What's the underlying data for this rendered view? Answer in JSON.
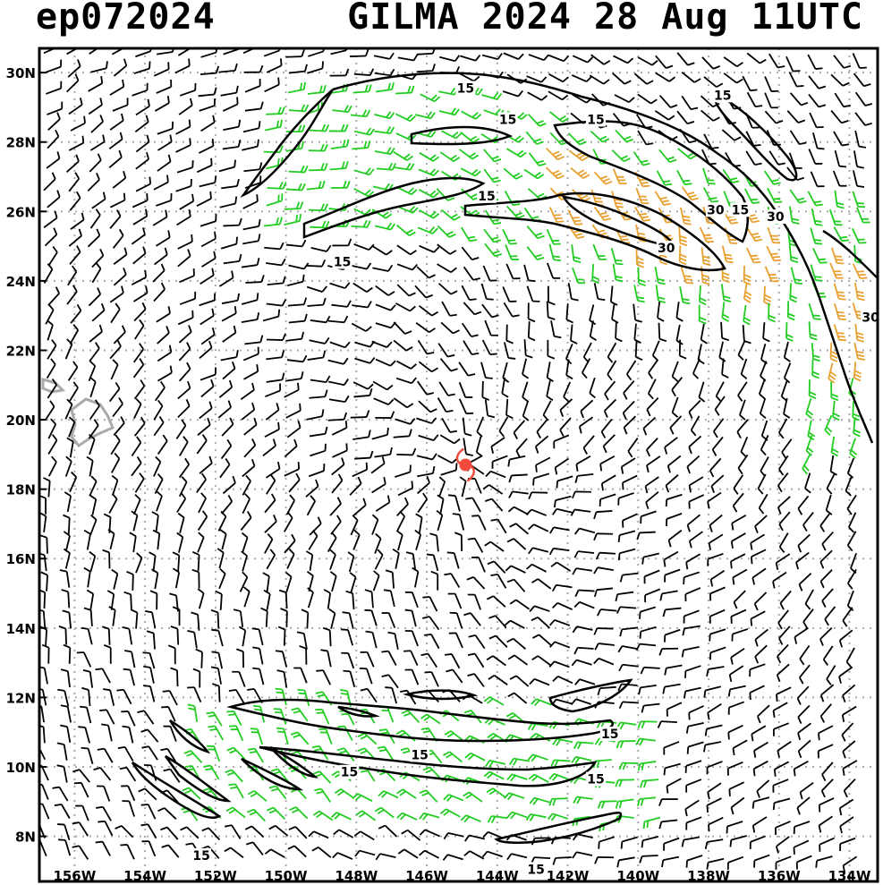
{
  "title_left": "ep072024",
  "title_right": "GILMA 2024 28 Aug 11UTC",
  "colors": {
    "barb_weak": "#000000",
    "barb_moderate": "#22cc22",
    "barb_strong": "#e8a030",
    "storm_marker": "#f24b3c",
    "coastline": "#aaaaaa",
    "grid": "#aaaaaa",
    "contour": "#000000"
  },
  "map": {
    "lat_labels": [
      "30N",
      "28N",
      "26N",
      "24N",
      "22N",
      "20N",
      "18N",
      "16N",
      "14N",
      "12N",
      "10N",
      "8N"
    ],
    "lon_labels": [
      "156W",
      "154W",
      "152W",
      "150W",
      "148W",
      "146W",
      "144W",
      "142W",
      "140W",
      "138W",
      "136W",
      "134W"
    ],
    "lat_range": [
      6.7,
      30.7
    ],
    "lon_range": [
      -157,
      -133.2
    ],
    "storm_center": {
      "lon": -144.9,
      "lat": 18.7
    },
    "contour_labels": [
      {
        "text": "15",
        "lon": -144.9,
        "lat": 29.5
      },
      {
        "text": "15",
        "lon": -137.6,
        "lat": 29.3
      },
      {
        "text": "15",
        "lon": -143.7,
        "lat": 28.6
      },
      {
        "text": "15",
        "lon": -141.2,
        "lat": 28.6
      },
      {
        "text": "15",
        "lon": -144.3,
        "lat": 26.4
      },
      {
        "text": "30",
        "lon": -137.8,
        "lat": 26.0
      },
      {
        "text": "15",
        "lon": -137.1,
        "lat": 26.0
      },
      {
        "text": "30",
        "lon": -136.1,
        "lat": 25.8
      },
      {
        "text": "30",
        "lon": -139.2,
        "lat": 24.9
      },
      {
        "text": "15",
        "lon": -148.4,
        "lat": 24.5
      },
      {
        "text": "30",
        "lon": -133.4,
        "lat": 22.9
      },
      {
        "text": "15",
        "lon": -140.8,
        "lat": 10.9
      },
      {
        "text": "15",
        "lon": -146.2,
        "lat": 10.3
      },
      {
        "text": "15",
        "lon": -148.2,
        "lat": 9.8
      },
      {
        "text": "15",
        "lon": -141.2,
        "lat": 9.6
      },
      {
        "text": "15",
        "lon": -152.4,
        "lat": 7.4
      },
      {
        "text": "15",
        "lon": -142.9,
        "lat": 7.0
      }
    ]
  }
}
